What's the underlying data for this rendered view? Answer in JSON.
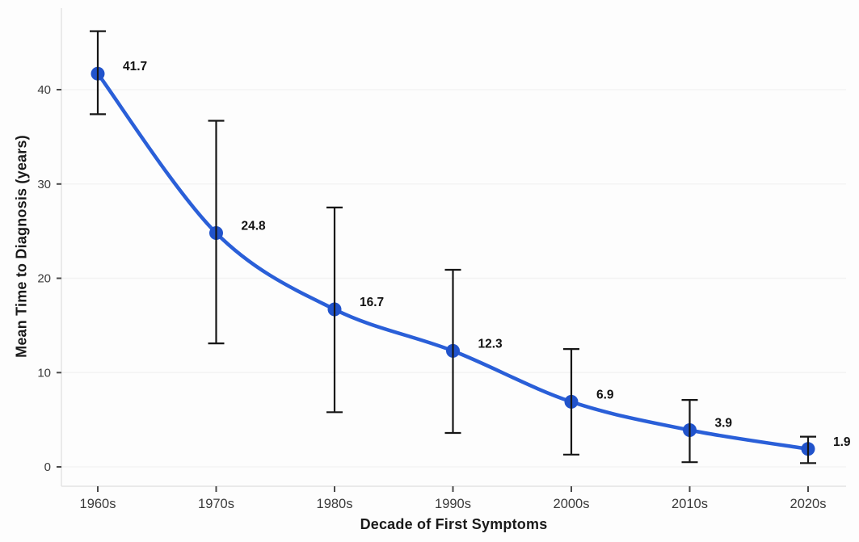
{
  "chart_data": {
    "type": "line",
    "title": "",
    "xlabel": "Decade of First Symptoms",
    "ylabel": "Mean Time to Diagnosis (years)",
    "categories": [
      "1960s",
      "1970s",
      "1980s",
      "1990s",
      "2000s",
      "2010s",
      "2020s"
    ],
    "series": [
      {
        "name": "Mean Time to Diagnosis",
        "values": [
          41.7,
          24.8,
          16.7,
          12.3,
          6.9,
          3.9,
          1.9
        ],
        "error_low": [
          37.4,
          13.1,
          5.8,
          3.6,
          1.3,
          0.5,
          0.4
        ],
        "error_high": [
          46.2,
          36.7,
          27.5,
          20.9,
          12.5,
          7.1,
          3.2
        ]
      }
    ],
    "point_labels": [
      "41.7",
      "24.8",
      "16.7",
      "12.3",
      "6.9",
      "3.9",
      "1.9"
    ],
    "yticks": [
      0,
      10,
      20,
      30,
      40
    ],
    "ylim": [
      0,
      48.5
    ],
    "grid": true,
    "legend_position": "none",
    "colors": {
      "line": "#2a5fd8",
      "marker": "#2153cb",
      "error_bar": "#161616",
      "grid_line": "#f3f3f3",
      "axis_line": "#e4e4e4",
      "tick_mark": "#4a4a4a",
      "tick_label": "#3a3a3a",
      "axis_title": "#1a1a1a",
      "point_label": "#111111",
      "background": "#fdfdfd"
    }
  }
}
